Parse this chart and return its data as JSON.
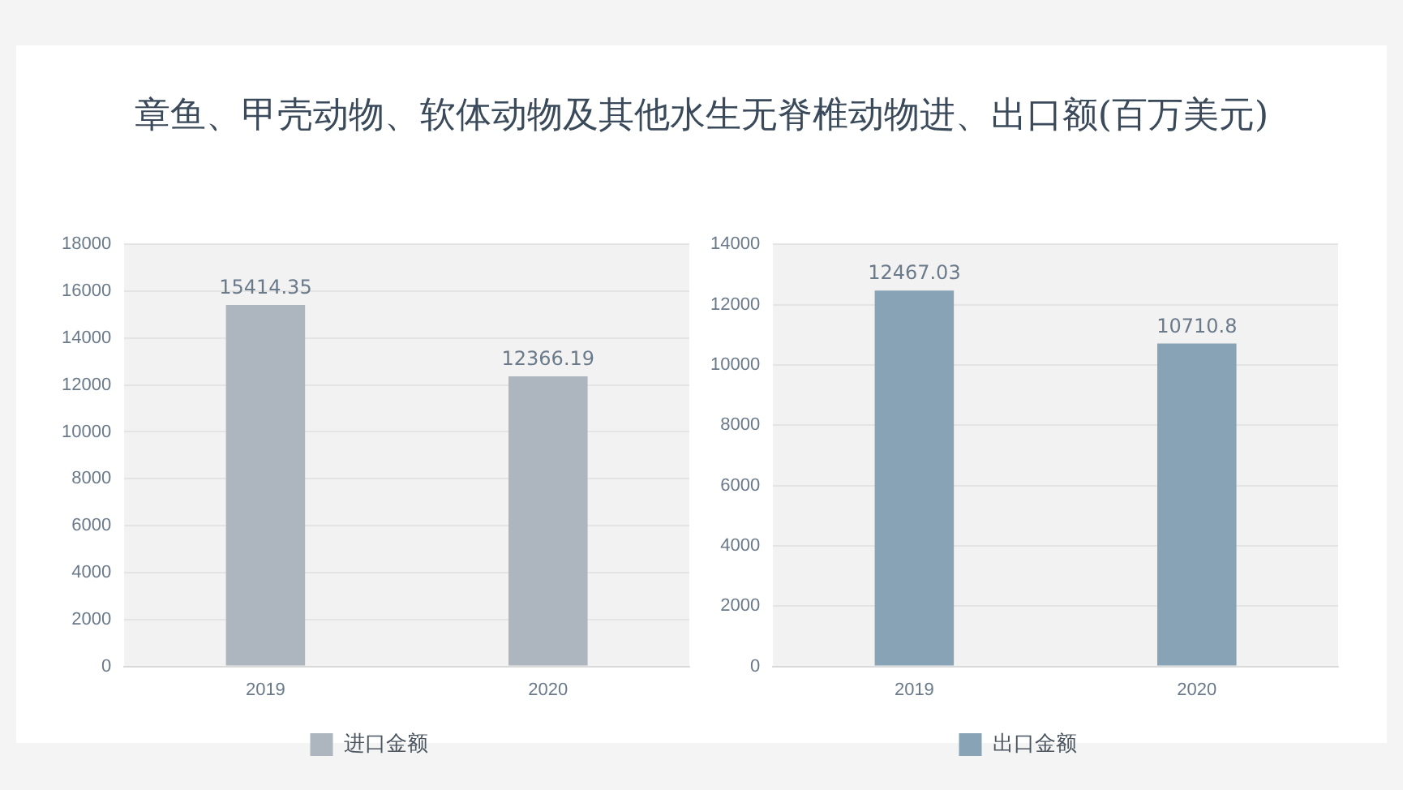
{
  "chart_data": [
    {
      "type": "bar",
      "title": "章鱼、甲壳动物、软体动物及其他水生无脊椎动物进、出口额(百万美元)",
      "categories": [
        "2019",
        "2020"
      ],
      "series": [
        {
          "name": "进口金额",
          "color": "#adb5bf",
          "values": [
            15414.35,
            12366.19
          ]
        }
      ],
      "ylim": [
        0,
        18000
      ],
      "yticks": [
        0,
        2000,
        4000,
        6000,
        8000,
        10000,
        12000,
        14000,
        16000,
        18000
      ],
      "grid": "y",
      "legend": "bottom",
      "data_labels": true
    },
    {
      "type": "bar",
      "categories": [
        "2019",
        "2020"
      ],
      "series": [
        {
          "name": "出口金额",
          "color": "#87a3b5",
          "values": [
            12467.03,
            10710.8
          ]
        }
      ],
      "ylim": [
        0,
        14000
      ],
      "yticks": [
        0,
        2000,
        4000,
        6000,
        8000,
        10000,
        12000,
        14000
      ],
      "grid": "y",
      "legend": "bottom",
      "data_labels": true
    }
  ]
}
